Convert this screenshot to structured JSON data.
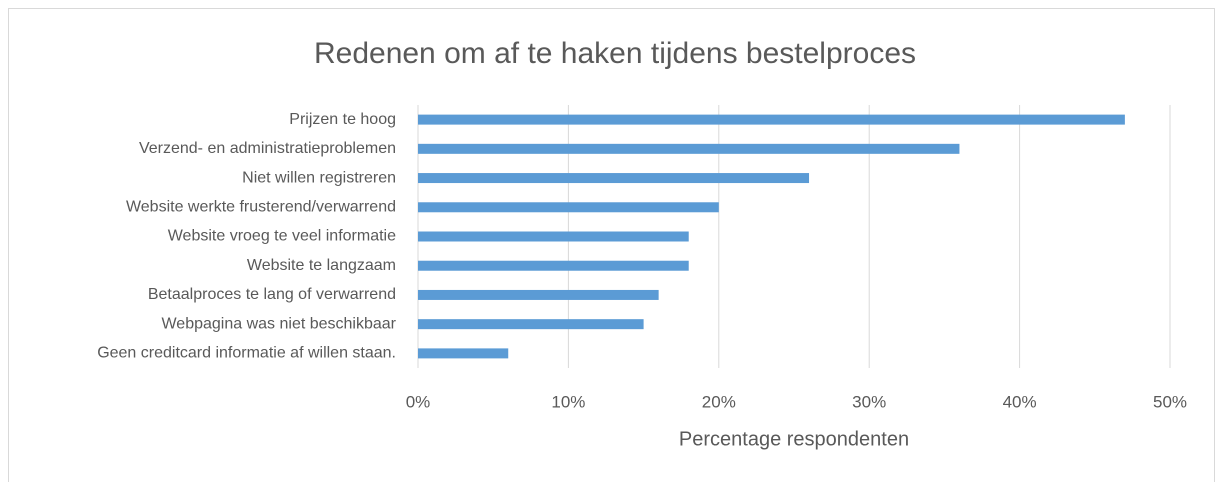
{
  "chart_data": {
    "type": "barh",
    "title": "Redenen om af te haken tijdens bestelproces",
    "categories": [
      "Prijzen te hoog",
      "Verzend- en administratieproblemen",
      "Niet willen registreren",
      "Website werkte frusterend/verwarrend",
      "Website vroeg te veel informatie",
      "Website te langzaam",
      "Betaalproces te lang of verwarrend",
      "Webpagina was niet beschikbaar",
      "Geen creditcard informatie af willen staan."
    ],
    "values": [
      47,
      36,
      26,
      20,
      18,
      18,
      16,
      15,
      6
    ],
    "color": "#5b9bd5",
    "x_label": "Percentage respondenten",
    "xlim": [
      0,
      50
    ],
    "xticks": [
      {
        "value": 0,
        "label": "0%"
      },
      {
        "value": 10,
        "label": "10%"
      },
      {
        "value": 20,
        "label": "20%"
      },
      {
        "value": 30,
        "label": "30%"
      },
      {
        "value": 40,
        "label": "40%"
      },
      {
        "value": 50,
        "label": "50%"
      }
    ],
    "grid": true
  }
}
